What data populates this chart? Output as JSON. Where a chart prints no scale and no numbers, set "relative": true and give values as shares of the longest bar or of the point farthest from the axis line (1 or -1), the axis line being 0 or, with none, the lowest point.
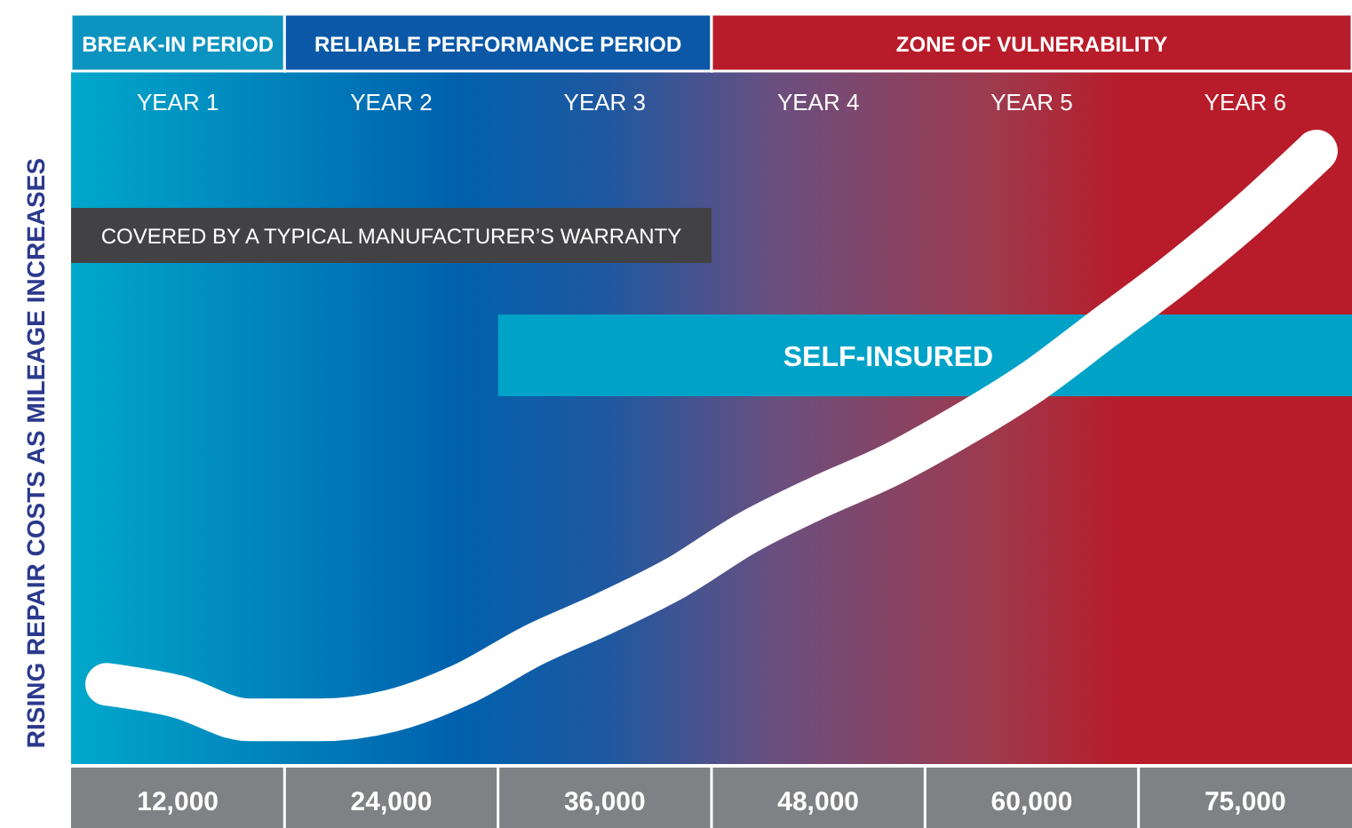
{
  "chart_data": {
    "type": "line",
    "relative": true,
    "ylabel": "RISING REPAIR COSTS AS MILEAGE INCREASES",
    "categories": [
      null,
      "12,000",
      null,
      null,
      "24,000",
      null,
      null,
      "36,000",
      null,
      null,
      "48,000",
      null,
      null,
      "60,000",
      null,
      null,
      "75,000",
      null
    ],
    "series": [
      {
        "color": "#ffffff",
        "values": [
          0.13,
          0.11,
          0.072,
          0.072,
          0.087,
          0.13,
          0.194,
          0.246,
          0.304,
          0.377,
          0.435,
          0.487,
          0.551,
          0.623,
          0.71,
          0.797,
          0.893,
          1
        ]
      }
    ],
    "annotations": [
      "BREAK-IN PERIOD",
      "RELIABLE PERFORMANCE PERIOD",
      "ZONE OF VULNERABILITY",
      "YEAR 1",
      "YEAR 2",
      "YEAR 3",
      "YEAR 4",
      "YEAR 5",
      "YEAR 6",
      "COVERED BY A TYPICAL MANUFACTURER’S WARRANTY",
      "SELF-INSURED"
    ],
    "line_style": "solid"
  }
}
